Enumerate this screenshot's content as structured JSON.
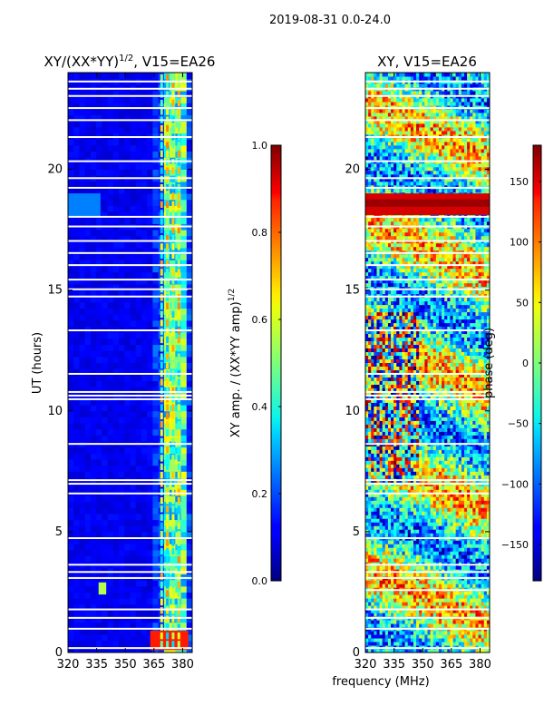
{
  "figure": {
    "suptitle": "2019-08-31 0.0-24.0",
    "common_xlabel": "frequency (MHz)"
  },
  "chart_data": [
    {
      "type": "heatmap",
      "title_base": "XY/(XX*YY)",
      "title_exp": "1/2",
      "title_suffix": ", V15=EA26",
      "xlabel": "",
      "ylabel": "UT (hours)",
      "xlim": [
        320,
        385
      ],
      "ylim": [
        0,
        24
      ],
      "xticks": [
        320,
        335,
        350,
        365,
        380
      ],
      "yticks": [
        0,
        5,
        10,
        15,
        20
      ],
      "colormap": "jet",
      "colorbar": {
        "label_base": "XY amp. / (XX*YY amp)",
        "label_exp": "1/2",
        "range": [
          0.0,
          1.0
        ],
        "ticks": [
          0.0,
          0.2,
          0.4,
          0.6,
          0.8,
          1.0
        ],
        "tick_labels": [
          "0.0",
          "0.2",
          "0.4",
          "0.6",
          "0.8",
          "1.0"
        ]
      },
      "flagged_hours": [
        0.15,
        0.95,
        1.4,
        1.75,
        3.05,
        3.3,
        3.6,
        4.7,
        6.55,
        6.95,
        7.1,
        8.6,
        10.45,
        10.6,
        10.75,
        11.5,
        13.3,
        14.7,
        15.0,
        15.4,
        16.0,
        16.5,
        17.0,
        17.6,
        18.0,
        19.2,
        19.6,
        20.3,
        21.3,
        22.0,
        22.5,
        23.0,
        23.3,
        23.6
      ],
      "band_regions": [
        {
          "ut_start": 0.1,
          "ut_end": 0.9,
          "freq_start": 363,
          "freq_end": 383,
          "level": 0.85
        },
        {
          "ut_start": 2.4,
          "ut_end": 2.9,
          "freq_start": 336,
          "freq_end": 340,
          "level": 0.55
        },
        {
          "ut_start": 18.0,
          "ut_end": 19.0,
          "freq_start": 320,
          "freq_end": 337,
          "level": 0.25
        }
      ],
      "bright_channels_mhz": [
        369,
        372,
        375,
        378
      ]
    },
    {
      "type": "heatmap",
      "title": "XY, V15=EA26",
      "xlabel": "",
      "ylabel": "",
      "xlim": [
        320,
        385
      ],
      "ylim": [
        0,
        24
      ],
      "xticks": [
        320,
        335,
        350,
        365,
        380
      ],
      "yticks": [
        0,
        5,
        10,
        15,
        20
      ],
      "colormap": "jet",
      "colorbar": {
        "label": "phase (deg)",
        "range": [
          -180,
          180
        ],
        "ticks": [
          -150,
          -100,
          -50,
          0,
          50,
          100,
          150
        ],
        "tick_labels": [
          "−150",
          "−100",
          "−50",
          "0",
          "50",
          "100",
          "150"
        ]
      },
      "flagged_hours": [
        0.15,
        0.95,
        1.4,
        1.75,
        2.55,
        3.05,
        3.3,
        3.6,
        4.7,
        6.55,
        6.95,
        7.1,
        8.6,
        10.45,
        10.6,
        10.75,
        11.5,
        13.3,
        14.7,
        15.0,
        15.4,
        16.0,
        16.5,
        17.0,
        17.6,
        18.0,
        19.2,
        19.6,
        20.3,
        21.3,
        22.0,
        22.5,
        23.0,
        23.3,
        23.6
      ],
      "band_regions": [
        {
          "ut_start": 18.1,
          "ut_end": 19.0,
          "freq_start": 320,
          "freq_end": 385,
          "level_deg": 150
        },
        {
          "ut_start": 18.45,
          "ut_end": 18.75,
          "freq_start": 320,
          "freq_end": 385,
          "level_deg": 170
        }
      ]
    }
  ]
}
